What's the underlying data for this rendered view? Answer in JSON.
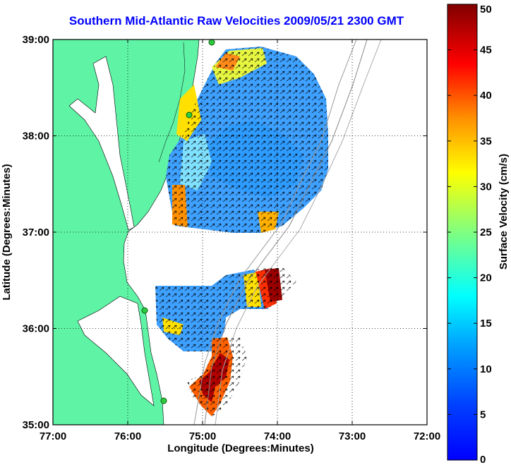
{
  "title": "Southern Mid-Atlantic Raw Velocities 2009/05/21 2300 GMT",
  "x_axis": {
    "label": "Longitude (Degrees:Minutes)",
    "ticks": [
      "77:00",
      "76:00",
      "75:00",
      "74:00",
      "73:00",
      "72:00"
    ]
  },
  "y_axis": {
    "label": "Latitude (Degrees:Minutes)",
    "ticks": [
      "39:00",
      "38:00",
      "37:00",
      "36:00",
      "35:00"
    ]
  },
  "colorbar": {
    "label": "Surface Velocity (cm/s)",
    "ticks": [
      "50",
      "45",
      "40",
      "35",
      "30",
      "25",
      "20",
      "15",
      "10",
      "5",
      "0"
    ],
    "min": 0,
    "max": 50,
    "colormap": "jet"
  },
  "colors": {
    "land": "#5ff3a6",
    "title": "#0000ff",
    "station": "#2ecc40"
  }
}
